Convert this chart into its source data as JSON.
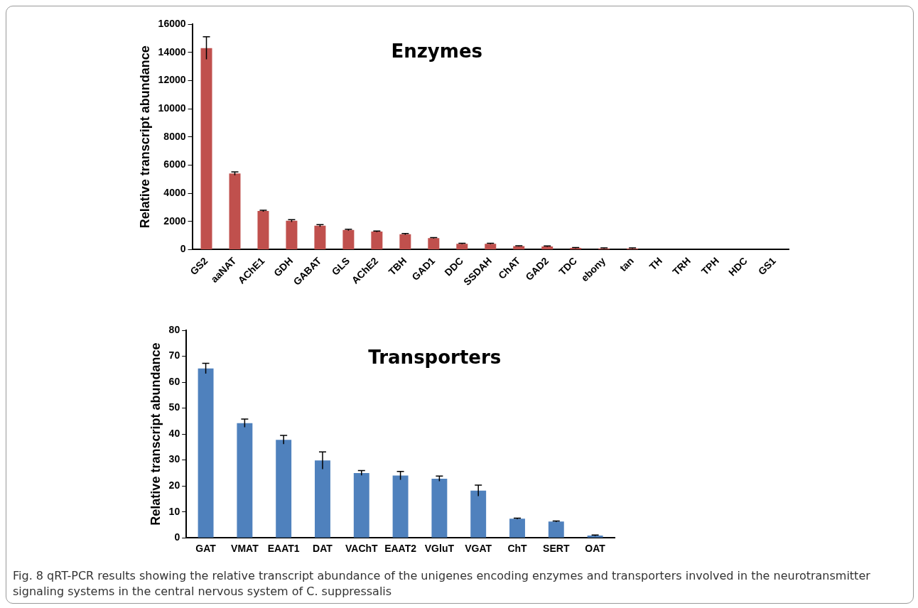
{
  "chart_data": [
    {
      "type": "bar",
      "title": "Enzymes",
      "ylabel": "Relative transcript abundance",
      "categories": [
        "GS2",
        "aaNAT",
        "AChE1",
        "GDH",
        "GABAT",
        "GLS",
        "AChE2",
        "TBH",
        "GAD1",
        "DDC",
        "SSDAH",
        "ChAT",
        "GAD2",
        "TDC",
        "ebony",
        "tan",
        "TH",
        "TRH",
        "TPH",
        "HDC",
        "GS1"
      ],
      "values": [
        14300,
        5400,
        2750,
        2050,
        1700,
        1400,
        1280,
        1100,
        820,
        420,
        420,
        250,
        230,
        120,
        90,
        90,
        null,
        null,
        null,
        null,
        null
      ],
      "errors": [
        800,
        120,
        50,
        80,
        80,
        50,
        40,
        40,
        30,
        30,
        30,
        30,
        30,
        30,
        30,
        30,
        null,
        null,
        null,
        null,
        null
      ],
      "color": "#c0504d",
      "ylim": [
        0,
        16000
      ],
      "yticks": [
        0,
        2000,
        4000,
        6000,
        8000,
        10000,
        12000,
        14000,
        16000
      ],
      "grid": false,
      "legend": false
    },
    {
      "type": "bar",
      "title": "Transporters",
      "ylabel": "Relative transcript abundance",
      "categories": [
        "GAT",
        "VMAT",
        "EAAT1",
        "DAT",
        "VAChT",
        "EAAT2",
        "VGluT",
        "VGAT",
        "ChT",
        "SERT",
        "OAT"
      ],
      "values": [
        65.3,
        44.2,
        37.8,
        29.8,
        25,
        24,
        22.8,
        18.2,
        7.4,
        6.3,
        0.9
      ],
      "errors": [
        2,
        1.6,
        1.7,
        3.3,
        0.9,
        1.6,
        1,
        2.1,
        0.2,
        0.2,
        0.2
      ],
      "color": "#4f81bd",
      "ylim": [
        0,
        80
      ],
      "yticks": [
        0,
        10,
        20,
        30,
        40,
        50,
        60,
        70,
        80
      ],
      "grid": false,
      "legend": false,
      "annotations": [
        "Fig. 8 qRT-PCR results showing the relative transcript abundance of the unigenes encoding enzymes and transporters involved in the neurotransmitter signaling systems in the central nervous system of C. suppressalis"
      ]
    }
  ]
}
